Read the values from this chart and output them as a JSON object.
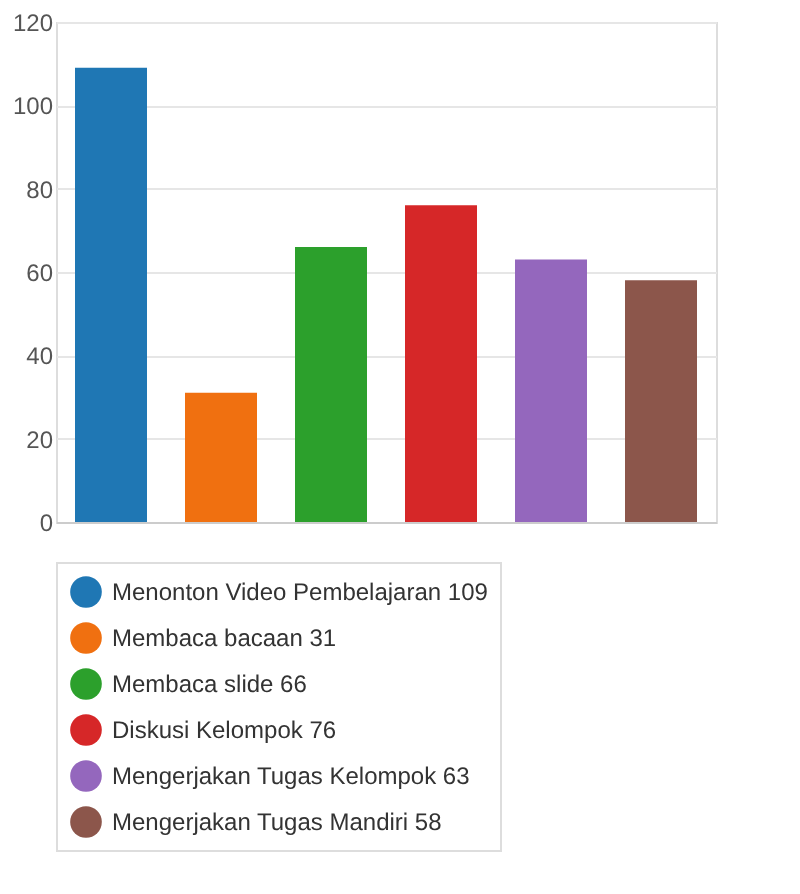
{
  "chart_data": {
    "type": "bar",
    "categories": [
      null,
      null,
      null,
      null,
      null,
      null
    ],
    "series": [
      {
        "name": "Menonton Video Pembelajaran 109",
        "color": "#1f77b4",
        "values": [
          109,
          null,
          null,
          null,
          null,
          null
        ]
      },
      {
        "name": "Membaca bacaan 31",
        "color": "#f07010",
        "values": [
          null,
          31,
          null,
          null,
          null,
          null
        ]
      },
      {
        "name": "Membaca slide 66",
        "color": "#2ca02c",
        "values": [
          null,
          null,
          66,
          null,
          null,
          null
        ]
      },
      {
        "name": "Diskusi Kelompok 76",
        "color": "#d62728",
        "values": [
          null,
          null,
          null,
          76,
          null,
          null
        ]
      },
      {
        "name": "Mengerjakan Tugas Kelompok 63",
        "color": "#9467bd",
        "values": [
          null,
          null,
          null,
          null,
          63,
          null
        ]
      },
      {
        "name": "Mengerjakan Tugas Mandiri 58",
        "color": "#8c564b",
        "values": [
          null,
          null,
          null,
          null,
          null,
          58
        ]
      }
    ],
    "ylim": [
      0,
      120
    ],
    "yticks": [
      0,
      20,
      40,
      60,
      80,
      100,
      120
    ],
    "grid": "y",
    "legend": "bottom"
  }
}
